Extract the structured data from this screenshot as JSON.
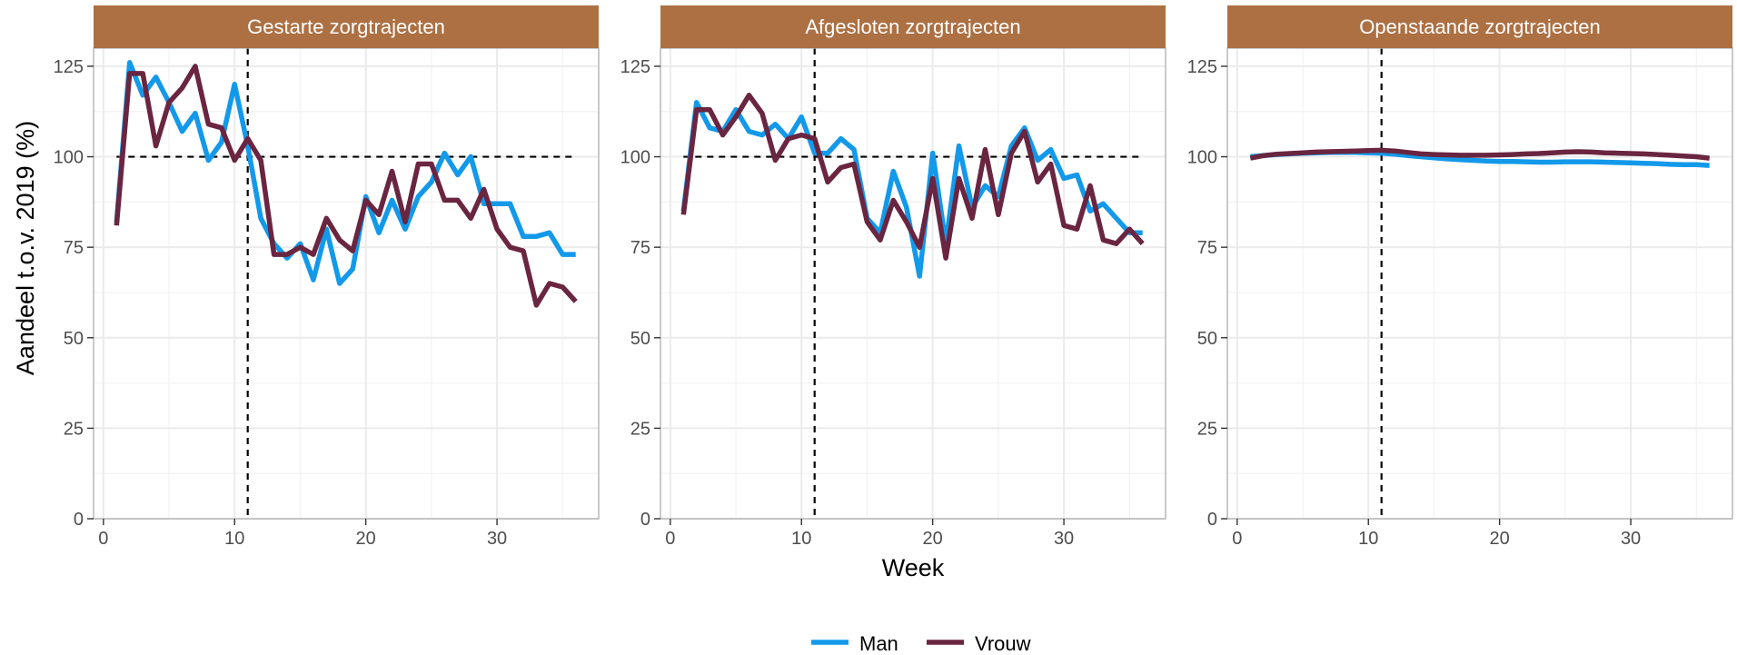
{
  "chart_data": {
    "type": "line",
    "ylabel": "Aandeel t.o.v. 2019 (%)",
    "xlabel": "Week",
    "xlim": [
      -0.75,
      37.75
    ],
    "ylim": [
      0,
      130
    ],
    "x_ticks": [
      0,
      10,
      20,
      30
    ],
    "y_ticks": [
      0,
      25,
      50,
      75,
      100,
      125
    ],
    "reference_lines": {
      "x": 11,
      "y": 100,
      "style": "dashed"
    },
    "strip_color": "#AD7043",
    "grid": true,
    "legend_position": "bottom",
    "panels": [
      {
        "title": "Gestarte zorgtrajecten",
        "show_hline": true,
        "series": [
          {
            "name": "Man",
            "color": "#1399EA",
            "values": [
              [
                1,
                82
              ],
              [
                2,
                126
              ],
              [
                3,
                117
              ],
              [
                4,
                122
              ],
              [
                5,
                115
              ],
              [
                6,
                107
              ],
              [
                7,
                112
              ],
              [
                8,
                99
              ],
              [
                9,
                104
              ],
              [
                10,
                120
              ],
              [
                11,
                103
              ],
              [
                12,
                83
              ],
              [
                13,
                76
              ],
              [
                14,
                72
              ],
              [
                15,
                76
              ],
              [
                16,
                66
              ],
              [
                17,
                80
              ],
              [
                18,
                65
              ],
              [
                19,
                69
              ],
              [
                20,
                89
              ],
              [
                21,
                79
              ],
              [
                22,
                88
              ],
              [
                23,
                80
              ],
              [
                24,
                89
              ],
              [
                25,
                93
              ],
              [
                26,
                101
              ],
              [
                27,
                95
              ],
              [
                28,
                100
              ],
              [
                29,
                87
              ],
              [
                30,
                87
              ],
              [
                31,
                87
              ],
              [
                32,
                78
              ],
              [
                33,
                78
              ],
              [
                34,
                79
              ],
              [
                35,
                73
              ],
              [
                36,
                73
              ]
            ]
          },
          {
            "name": "Vrouw",
            "color": "#6A2540",
            "values": [
              [
                1,
                81
              ],
              [
                2,
                123
              ],
              [
                3,
                123
              ],
              [
                4,
                103
              ],
              [
                5,
                115
              ],
              [
                6,
                119
              ],
              [
                7,
                125
              ],
              [
                8,
                109
              ],
              [
                9,
                108
              ],
              [
                10,
                99
              ],
              [
                11,
                105
              ],
              [
                12,
                99
              ],
              [
                13,
                73
              ],
              [
                14,
                73
              ],
              [
                15,
                75
              ],
              [
                16,
                73
              ],
              [
                17,
                83
              ],
              [
                18,
                77
              ],
              [
                19,
                74
              ],
              [
                20,
                88
              ],
              [
                21,
                84
              ],
              [
                22,
                96
              ],
              [
                23,
                82
              ],
              [
                24,
                98
              ],
              [
                25,
                98
              ],
              [
                26,
                88
              ],
              [
                27,
                88
              ],
              [
                28,
                83
              ],
              [
                29,
                91
              ],
              [
                30,
                80
              ],
              [
                31,
                75
              ],
              [
                32,
                74
              ],
              [
                33,
                59
              ],
              [
                34,
                65
              ],
              [
                35,
                64
              ],
              [
                36,
                60
              ]
            ]
          }
        ]
      },
      {
        "title": "Afgesloten zorgtrajecten",
        "show_hline": true,
        "series": [
          {
            "name": "Man",
            "color": "#1399EA",
            "values": [
              [
                1,
                85
              ],
              [
                2,
                115
              ],
              [
                3,
                108
              ],
              [
                4,
                107
              ],
              [
                5,
                113
              ],
              [
                6,
                107
              ],
              [
                7,
                106
              ],
              [
                8,
                109
              ],
              [
                9,
                105
              ],
              [
                10,
                111
              ],
              [
                11,
                101
              ],
              [
                12,
                101
              ],
              [
                13,
                105
              ],
              [
                14,
                102
              ],
              [
                15,
                83
              ],
              [
                16,
                79
              ],
              [
                17,
                96
              ],
              [
                18,
                86
              ],
              [
                19,
                67
              ],
              [
                20,
                101
              ],
              [
                21,
                76
              ],
              [
                22,
                103
              ],
              [
                23,
                86
              ],
              [
                24,
                92
              ],
              [
                25,
                89
              ],
              [
                26,
                103
              ],
              [
                27,
                108
              ],
              [
                28,
                99
              ],
              [
                29,
                102
              ],
              [
                30,
                94
              ],
              [
                31,
                95
              ],
              [
                32,
                85
              ],
              [
                33,
                87
              ],
              [
                34,
                83
              ],
              [
                35,
                79
              ],
              [
                36,
                79
              ]
            ]
          },
          {
            "name": "Vrouw",
            "color": "#6A2540",
            "values": [
              [
                1,
                84
              ],
              [
                2,
                113
              ],
              [
                3,
                113
              ],
              [
                4,
                106
              ],
              [
                5,
                111
              ],
              [
                6,
                117
              ],
              [
                7,
                112
              ],
              [
                8,
                99
              ],
              [
                9,
                105
              ],
              [
                10,
                106
              ],
              [
                11,
                105
              ],
              [
                12,
                93
              ],
              [
                13,
                97
              ],
              [
                14,
                98
              ],
              [
                15,
                82
              ],
              [
                16,
                77
              ],
              [
                17,
                88
              ],
              [
                18,
                82
              ],
              [
                19,
                75
              ],
              [
                20,
                94
              ],
              [
                21,
                72
              ],
              [
                22,
                94
              ],
              [
                23,
                83
              ],
              [
                24,
                102
              ],
              [
                25,
                84
              ],
              [
                26,
                101
              ],
              [
                27,
                107
              ],
              [
                28,
                93
              ],
              [
                29,
                98
              ],
              [
                30,
                81
              ],
              [
                31,
                80
              ],
              [
                32,
                92
              ],
              [
                33,
                77
              ],
              [
                34,
                76
              ],
              [
                35,
                80
              ],
              [
                36,
                76
              ]
            ]
          }
        ]
      },
      {
        "title": "Openstaande zorgtrajecten",
        "show_hline": false,
        "series": [
          {
            "name": "Man",
            "color": "#1399EA",
            "values": [
              [
                1,
                100
              ],
              [
                2,
                100.3
              ],
              [
                3,
                100.6
              ],
              [
                4,
                100.8
              ],
              [
                5,
                101
              ],
              [
                6,
                101.1
              ],
              [
                7,
                101.2
              ],
              [
                8,
                101.2
              ],
              [
                9,
                101.2
              ],
              [
                10,
                101.1
              ],
              [
                11,
                101
              ],
              [
                12,
                100.7
              ],
              [
                13,
                100.3
              ],
              [
                14,
                100
              ],
              [
                15,
                99.7
              ],
              [
                16,
                99.4
              ],
              [
                17,
                99.2
              ],
              [
                18,
                99
              ],
              [
                19,
                98.8
              ],
              [
                20,
                98.7
              ],
              [
                21,
                98.7
              ],
              [
                22,
                98.6
              ],
              [
                23,
                98.5
              ],
              [
                24,
                98.5
              ],
              [
                25,
                98.6
              ],
              [
                26,
                98.6
              ],
              [
                27,
                98.6
              ],
              [
                28,
                98.5
              ],
              [
                29,
                98.4
              ],
              [
                30,
                98.3
              ],
              [
                31,
                98.2
              ],
              [
                32,
                98.1
              ],
              [
                33,
                97.9
              ],
              [
                34,
                97.8
              ],
              [
                35,
                97.8
              ],
              [
                36,
                97.6
              ]
            ]
          },
          {
            "name": "Vrouw",
            "color": "#6A2540",
            "values": [
              [
                1,
                99.6
              ],
              [
                2,
                100.3
              ],
              [
                3,
                100.7
              ],
              [
                4,
                100.9
              ],
              [
                5,
                101.1
              ],
              [
                6,
                101.3
              ],
              [
                7,
                101.4
              ],
              [
                8,
                101.5
              ],
              [
                9,
                101.6
              ],
              [
                10,
                101.7
              ],
              [
                11,
                101.8
              ],
              [
                12,
                101.6
              ],
              [
                13,
                101.2
              ],
              [
                14,
                100.8
              ],
              [
                15,
                100.6
              ],
              [
                16,
                100.5
              ],
              [
                17,
                100.4
              ],
              [
                18,
                100.4
              ],
              [
                19,
                100.4
              ],
              [
                20,
                100.5
              ],
              [
                21,
                100.6
              ],
              [
                22,
                100.8
              ],
              [
                23,
                100.9
              ],
              [
                24,
                101.1
              ],
              [
                25,
                101.3
              ],
              [
                26,
                101.4
              ],
              [
                27,
                101.3
              ],
              [
                28,
                101.1
              ],
              [
                29,
                101
              ],
              [
                30,
                100.9
              ],
              [
                31,
                100.8
              ],
              [
                32,
                100.6
              ],
              [
                33,
                100.4
              ],
              [
                34,
                100.2
              ],
              [
                35,
                100
              ],
              [
                36,
                99.6
              ]
            ]
          }
        ]
      }
    ],
    "legend": [
      {
        "name": "Man",
        "color": "#1399EA"
      },
      {
        "name": "Vrouw",
        "color": "#6A2540"
      }
    ]
  }
}
